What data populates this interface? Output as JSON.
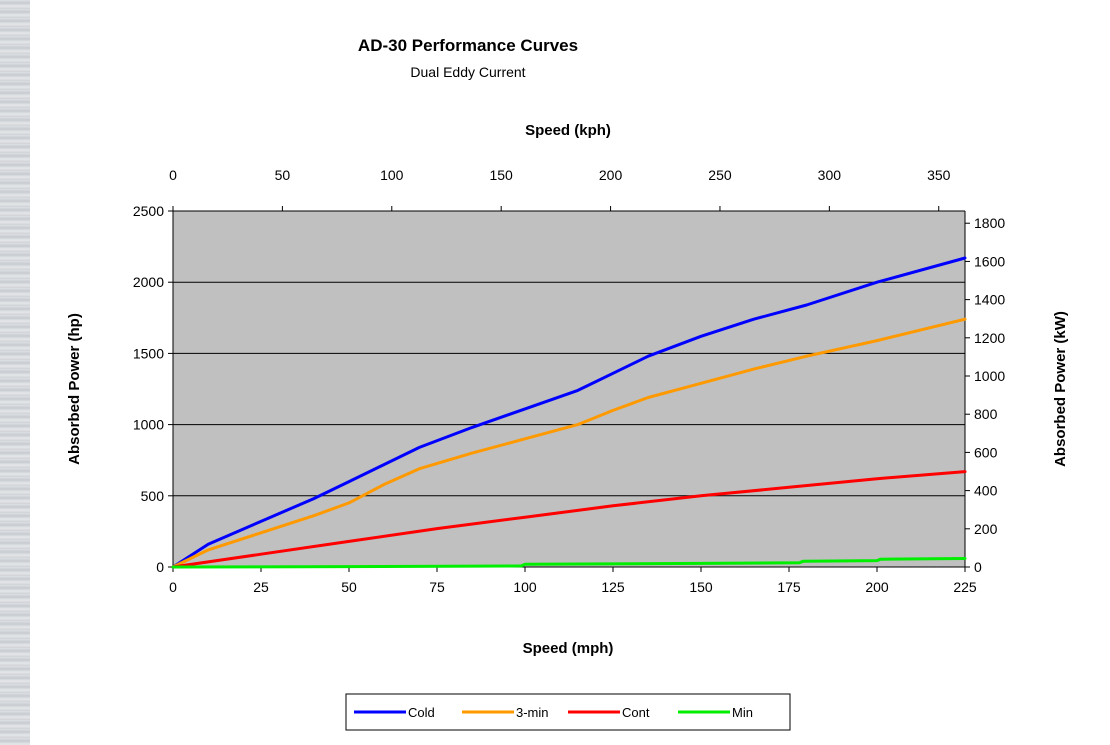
{
  "chart_data": {
    "type": "line",
    "title": "AD-30 Performance Curves",
    "subtitle": "Dual Eddy Current",
    "xlabel": "Speed (mph)",
    "x2label": "Speed (kph)",
    "ylabel": "Absorbed Power (hp)",
    "y2label": "Absorbed Power (kW)",
    "xlim": [
      0,
      225
    ],
    "ylim": [
      0,
      2500
    ],
    "x2lim": [
      0,
      362
    ],
    "y2lim": [
      0,
      1864
    ],
    "x_ticks": [
      "0",
      "25",
      "50",
      "75",
      "100",
      "125",
      "150",
      "175",
      "200",
      "225"
    ],
    "x_tick_values": [
      0,
      25,
      50,
      75,
      100,
      125,
      150,
      175,
      200,
      225
    ],
    "x2_ticks": [
      "0",
      "50",
      "100",
      "150",
      "200",
      "250",
      "300",
      "350"
    ],
    "x2_tick_values": [
      0,
      50,
      100,
      150,
      200,
      250,
      300,
      350
    ],
    "y_ticks": [
      "0",
      "500",
      "1000",
      "1500",
      "2000",
      "2500"
    ],
    "y_tick_values": [
      0,
      500,
      1000,
      1500,
      2000,
      2500
    ],
    "y2_ticks": [
      "0",
      "200",
      "400",
      "600",
      "800",
      "1000",
      "1200",
      "1400",
      "1600",
      "1800"
    ],
    "y2_tick_values": [
      0,
      200,
      400,
      600,
      800,
      1000,
      1200,
      1400,
      1600,
      1800
    ],
    "grid": "horizontal",
    "legend_position": "bottom",
    "plot_background": "#c0c0c0",
    "series": [
      {
        "name": "Cold",
        "color": "#0000ff",
        "x": [
          0,
          10,
          25,
          40,
          50,
          60,
          70,
          85,
          100,
          115,
          125,
          135,
          150,
          165,
          180,
          200,
          225
        ],
        "y": [
          0,
          160,
          320,
          480,
          600,
          720,
          840,
          980,
          1110,
          1240,
          1360,
          1480,
          1620,
          1740,
          1840,
          2000,
          2170
        ]
      },
      {
        "name": "3-min",
        "color": "#ff9900",
        "x": [
          0,
          10,
          25,
          40,
          50,
          60,
          70,
          85,
          100,
          115,
          125,
          135,
          150,
          165,
          180,
          200,
          225
        ],
        "y": [
          0,
          120,
          240,
          360,
          450,
          580,
          690,
          800,
          900,
          1000,
          1100,
          1190,
          1290,
          1390,
          1480,
          1590,
          1740
        ]
      },
      {
        "name": "Cont",
        "color": "#ff0000",
        "x": [
          0,
          25,
          50,
          75,
          100,
          125,
          150,
          175,
          200,
          225
        ],
        "y": [
          0,
          90,
          180,
          270,
          350,
          430,
          500,
          560,
          620,
          670
        ]
      },
      {
        "name": "Min",
        "color": "#00ee00",
        "x": [
          0,
          50,
          99,
          100,
          150,
          178,
          179,
          200,
          201,
          225
        ],
        "y": [
          0,
          3,
          8,
          20,
          25,
          30,
          40,
          45,
          55,
          60
        ]
      }
    ]
  }
}
